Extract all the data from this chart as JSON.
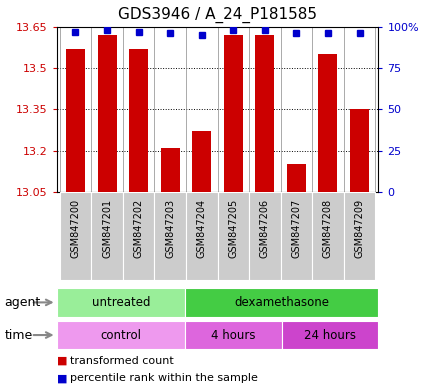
{
  "title": "GDS3946 / A_24_P181585",
  "samples": [
    "GSM847200",
    "GSM847201",
    "GSM847202",
    "GSM847203",
    "GSM847204",
    "GSM847205",
    "GSM847206",
    "GSM847207",
    "GSM847208",
    "GSM847209"
  ],
  "transformed_count": [
    13.57,
    13.62,
    13.57,
    13.21,
    13.27,
    13.62,
    13.62,
    13.15,
    13.55,
    13.35
  ],
  "percentile_rank": [
    97,
    98,
    97,
    96,
    95,
    98,
    98,
    96,
    96,
    96
  ],
  "ymin": 13.05,
  "ymax": 13.65,
  "yticks": [
    13.05,
    13.2,
    13.35,
    13.5,
    13.65
  ],
  "right_yticks": [
    0,
    25,
    50,
    75,
    100
  ],
  "bar_color": "#cc0000",
  "dot_color": "#0000cc",
  "agent_groups": [
    {
      "label": "untreated",
      "start": 0,
      "end": 4,
      "color": "#99ee99"
    },
    {
      "label": "dexamethasone",
      "start": 4,
      "end": 10,
      "color": "#44cc44"
    }
  ],
  "time_groups": [
    {
      "label": "control",
      "start": 0,
      "end": 4,
      "color": "#ee99ee"
    },
    {
      "label": "4 hours",
      "start": 4,
      "end": 7,
      "color": "#dd66dd"
    },
    {
      "label": "24 hours",
      "start": 7,
      "end": 10,
      "color": "#cc44cc"
    }
  ],
  "legend_items": [
    {
      "label": "transformed count",
      "color": "#cc0000"
    },
    {
      "label": "percentile rank within the sample",
      "color": "#0000cc"
    }
  ],
  "xtick_bg": "#cccccc"
}
